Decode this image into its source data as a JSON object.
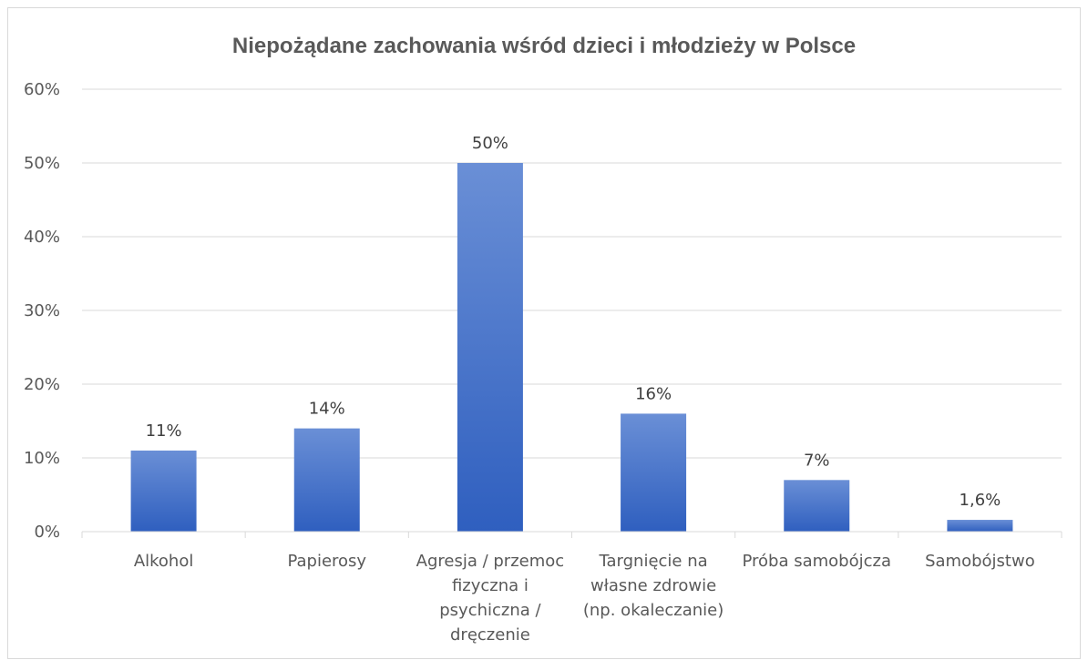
{
  "chart_data": {
    "type": "bar",
    "title": "Niepożądane zachowania wśród dzieci i młodzieży w Polsce",
    "xlabel": "",
    "ylabel": "",
    "categories": [
      [
        "Alkohol"
      ],
      [
        "Papierosy"
      ],
      [
        "Agresja / przemoc",
        "fizyczna i",
        "psychiczna /",
        "dręczenie"
      ],
      [
        "Targnięcie na",
        "własne zdrowie",
        "(np. okaleczanie)"
      ],
      [
        "Próba samobójcza"
      ],
      [
        "Samobójstwo"
      ]
    ],
    "values": [
      11,
      14,
      50,
      16,
      7,
      1.6
    ],
    "data_labels": [
      "11%",
      "14%",
      "50%",
      "16%",
      "7%",
      "1,6%"
    ],
    "ylim": [
      0,
      60
    ],
    "yticks": [
      0,
      10,
      20,
      30,
      40,
      50,
      60
    ],
    "ytick_labels": [
      "0%",
      "10%",
      "20%",
      "30%",
      "40%",
      "50%",
      "60%"
    ],
    "grid": true,
    "legend": "none",
    "colors": {
      "bar_top": "#6a8fd6",
      "bar_bottom": "#2f5fbf",
      "grid": "#d9d9d9",
      "text": "#595959"
    }
  }
}
